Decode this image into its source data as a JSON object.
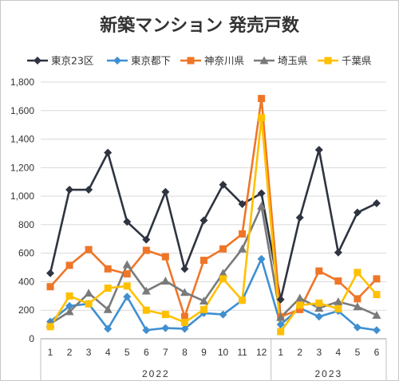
{
  "chart_data": {
    "type": "line",
    "title": "新築マンション 発売戸数",
    "xlabel": "",
    "ylabel": "",
    "ylim": [
      0,
      1800
    ],
    "y_ticks": [
      0,
      200,
      400,
      600,
      800,
      1000,
      1200,
      1400,
      1600,
      1800
    ],
    "y_tick_labels": [
      "0",
      "200",
      "400",
      "600",
      "800",
      "1,000",
      "1,200",
      "1,400",
      "1,600",
      "1,800"
    ],
    "categories": [
      "1",
      "2",
      "3",
      "4",
      "5",
      "6",
      "7",
      "8",
      "9",
      "10",
      "11",
      "12",
      "1",
      "2",
      "3",
      "4",
      "5",
      "6"
    ],
    "year_groups": [
      {
        "label": "2022",
        "count": 12
      },
      {
        "label": "2023",
        "count": 6
      }
    ],
    "grid": true,
    "legend_position": "top",
    "series": [
      {
        "name": "東京23区",
        "color": "#2e3440",
        "marker": "diamond",
        "values": [
          460,
          1045,
          1045,
          1305,
          820,
          695,
          1030,
          490,
          830,
          1080,
          945,
          1020,
          275,
          850,
          1325,
          605,
          885,
          950
        ]
      },
      {
        "name": "東京都下",
        "color": "#3f8fd2",
        "marker": "diamond",
        "values": [
          120,
          230,
          245,
          70,
          295,
          60,
          75,
          70,
          180,
          170,
          270,
          560,
          100,
          215,
          155,
          195,
          80,
          60
        ]
      },
      {
        "name": "神奈川県",
        "color": "#ee7628",
        "marker": "square",
        "values": [
          365,
          515,
          625,
          490,
          455,
          620,
          575,
          155,
          550,
          630,
          735,
          1685,
          155,
          205,
          475,
          405,
          280,
          420
        ]
      },
      {
        "name": "埼玉県",
        "color": "#7a7a7a",
        "marker": "triangle",
        "values": [
          105,
          190,
          320,
          205,
          520,
          335,
          405,
          325,
          265,
          460,
          630,
          930,
          150,
          285,
          215,
          260,
          225,
          165
        ]
      },
      {
        "name": "千葉県",
        "color": "#ffc000",
        "marker": "square",
        "values": [
          85,
          300,
          245,
          355,
          370,
          200,
          170,
          115,
          205,
          420,
          270,
          1550,
          50,
          235,
          250,
          210,
          465,
          310
        ]
      }
    ]
  }
}
